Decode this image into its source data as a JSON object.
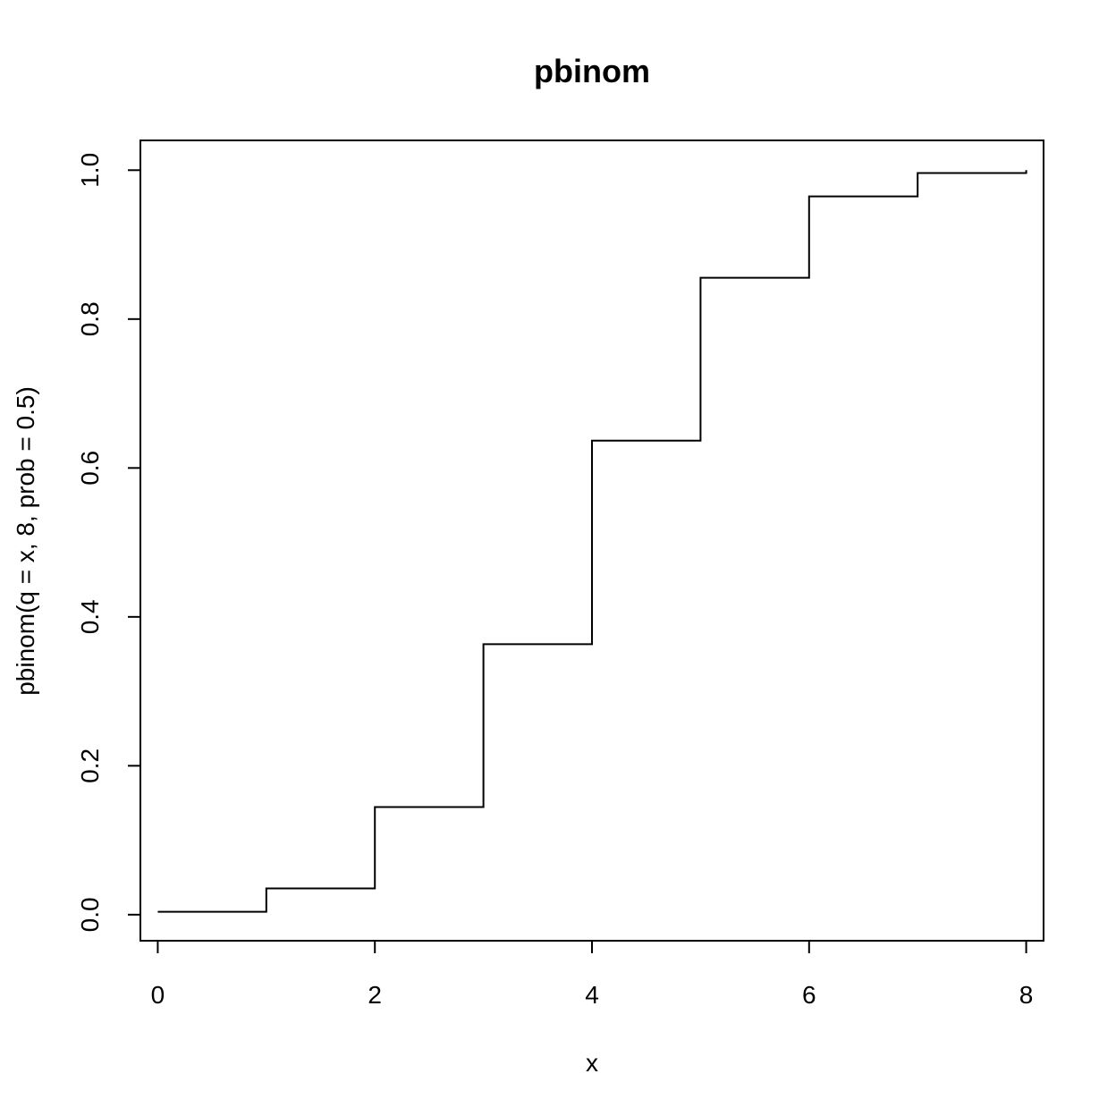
{
  "chart_data": {
    "type": "line",
    "plot_style": "step",
    "title": "pbinom",
    "xlabel": "x",
    "ylabel": "pbinom(q = x, 8, prob = 0.5)",
    "x": [
      0,
      1,
      2,
      3,
      4,
      5,
      6,
      7,
      8
    ],
    "series": [
      {
        "values": [
          0.0039,
          0.0352,
          0.1445,
          0.3633,
          0.6367,
          0.8555,
          0.9648,
          0.9961,
          1.0
        ]
      }
    ],
    "xlim": [
      -0.16,
      8.16
    ],
    "ylim": [
      -0.035,
      1.04
    ],
    "x_ticks": [
      0,
      2,
      4,
      6,
      8
    ],
    "y_ticks": [
      0.0,
      0.2,
      0.4,
      0.6,
      0.8,
      1.0
    ],
    "x_tick_labels": [
      "0",
      "2",
      "4",
      "6",
      "8"
    ],
    "y_tick_labels": [
      "0.0",
      "0.2",
      "0.4",
      "0.6",
      "0.8",
      "1.0"
    ],
    "grid": false,
    "legend": "none"
  }
}
